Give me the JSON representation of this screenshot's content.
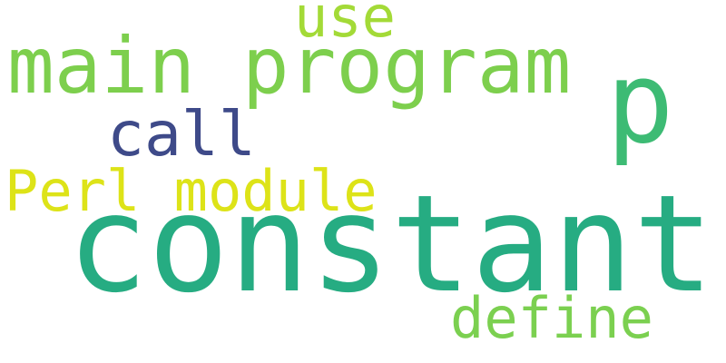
{
  "words": [
    {
      "text": "constant",
      "color": "#26ac82"
    },
    {
      "text": "main program",
      "color": "#7dcf4d"
    },
    {
      "text": "p",
      "color": "#3dbb74"
    },
    {
      "text": "use",
      "color": "#a3da37"
    },
    {
      "text": "call",
      "color": "#3e4a89"
    },
    {
      "text": "Perl module",
      "color": "#dde318"
    },
    {
      "text": "define",
      "color": "#7bd050"
    }
  ]
}
